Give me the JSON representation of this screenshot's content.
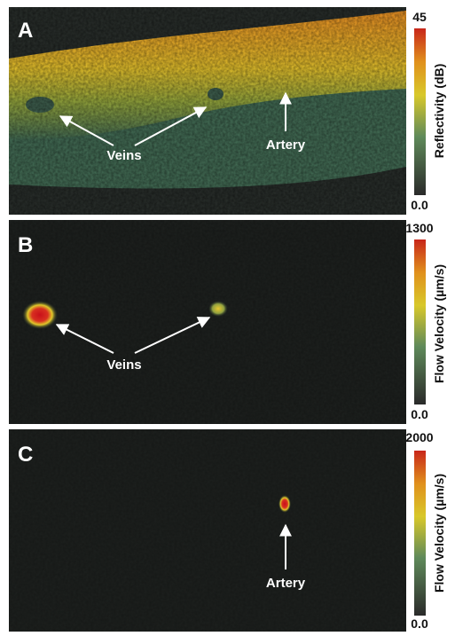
{
  "panels": [
    {
      "label": "A",
      "annotations": [
        "Veins",
        "Artery"
      ],
      "colorbar": {
        "max": "45",
        "min": "0.0",
        "title": "Reflectivity (dB)"
      }
    },
    {
      "label": "B",
      "annotations": [
        "Veins"
      ],
      "colorbar": {
        "max": "1300",
        "min": "0.0",
        "title": "Flow Velocity (µm/s)"
      }
    },
    {
      "label": "C",
      "annotations": [
        "Artery"
      ],
      "colorbar": {
        "max": "2000",
        "min": "0.0",
        "title": "Flow Velocity (µm/s)"
      }
    }
  ]
}
